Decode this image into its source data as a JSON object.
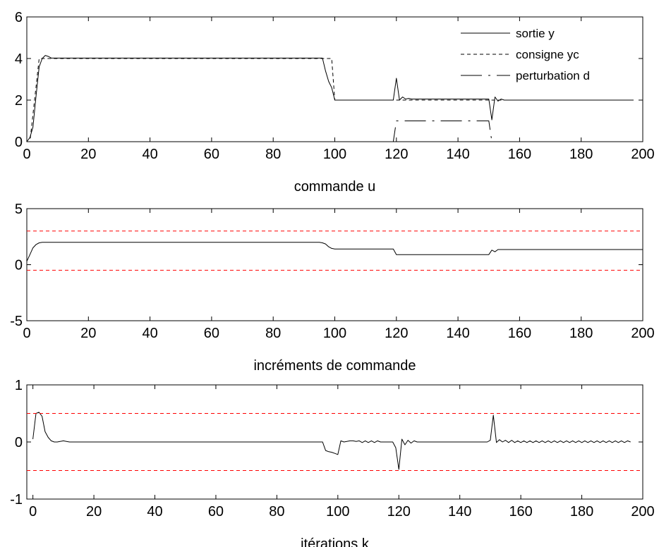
{
  "chart_data": [
    {
      "type": "line",
      "title": "",
      "xlabel": "commande u",
      "ylabel": "",
      "xlim": [
        0,
        200
      ],
      "ylim": [
        0,
        6
      ],
      "xticks": [
        0,
        20,
        40,
        60,
        80,
        100,
        120,
        140,
        160,
        180,
        200
      ],
      "yticks": [
        0,
        2,
        4,
        6
      ],
      "grid": false,
      "legend": "top-right",
      "series": [
        {
          "name": "sortie y",
          "color": "#000000",
          "dash": "solid",
          "x": [
            0,
            1,
            2,
            3,
            4,
            5,
            6,
            7,
            8,
            10,
            96,
            97,
            98,
            99,
            100,
            101,
            119,
            120,
            121,
            122,
            123,
            124,
            125,
            150,
            151,
            152,
            153,
            154,
            155,
            197
          ],
          "y": [
            0,
            0.2,
            0.7,
            2.2,
            3.6,
            4.0,
            4.15,
            4.1,
            4.02,
            4.02,
            4.02,
            3.4,
            2.9,
            2.6,
            2.0,
            2.0,
            2.0,
            3.05,
            2.0,
            2.15,
            2.05,
            2.08,
            2.05,
            2.05,
            1.05,
            2.15,
            1.95,
            2.05,
            2.0,
            2.0
          ]
        },
        {
          "name": "consigne yc",
          "color": "#000000",
          "dash": "dashed",
          "x": [
            0,
            1,
            4,
            99,
            100,
            101,
            197
          ],
          "y": [
            0,
            0,
            4.0,
            4.0,
            2.0,
            2.0,
            2.0
          ]
        },
        {
          "name": "perturbation d",
          "color": "#000000",
          "dash": "dashdot",
          "x": [
            0,
            119,
            120,
            150,
            151,
            197
          ],
          "y": [
            0,
            0,
            1.0,
            1.0,
            0,
            0
          ]
        }
      ]
    },
    {
      "type": "line",
      "title": "",
      "xlabel": "incréments de commande",
      "ylabel": "",
      "xlim": [
        0,
        200
      ],
      "ylim": [
        -5,
        5
      ],
      "xticks": [
        0,
        20,
        40,
        60,
        80,
        100,
        120,
        140,
        160,
        180,
        200
      ],
      "yticks": [
        -5,
        0,
        5
      ],
      "grid": false,
      "legend": "none",
      "series": [
        {
          "color": "#000000",
          "dash": "solid",
          "x": [
            0,
            1,
            2,
            3,
            4,
            5,
            6,
            95,
            96,
            97,
            98,
            99,
            100,
            119,
            120,
            121,
            150,
            151,
            152,
            153,
            200
          ],
          "y": [
            0.3,
            0.9,
            1.5,
            1.8,
            1.95,
            2.0,
            2.0,
            2.0,
            1.95,
            1.85,
            1.6,
            1.45,
            1.4,
            1.4,
            0.9,
            0.9,
            0.9,
            1.3,
            1.15,
            1.35,
            1.35
          ]
        },
        {
          "color": "#ff0000",
          "dash": "dashed",
          "x": [
            0,
            200
          ],
          "y": [
            3,
            3
          ]
        },
        {
          "color": "#ff0000",
          "dash": "dashed",
          "x": [
            0,
            200
          ],
          "y": [
            -0.5,
            -0.5
          ]
        }
      ]
    },
    {
      "type": "line",
      "title": "",
      "xlabel": "itérations k",
      "ylabel": "",
      "xlim": [
        -2,
        200
      ],
      "ylim": [
        -1,
        1
      ],
      "xticks": [
        0,
        20,
        40,
        60,
        80,
        100,
        120,
        140,
        160,
        180,
        200
      ],
      "yticks": [
        -1,
        0,
        1
      ],
      "grid": false,
      "legend": "none",
      "series": [
        {
          "color": "#000000",
          "dash": "solid",
          "x": [
            0,
            1,
            2,
            3,
            4,
            5,
            6,
            7,
            8,
            10,
            11,
            12,
            95,
            96,
            97,
            98,
            99,
            100,
            101,
            102,
            104,
            105,
            106,
            107,
            108,
            109,
            110,
            111,
            112,
            113,
            114,
            118,
            119,
            120,
            121,
            122,
            123,
            124,
            125,
            126,
            127,
            149,
            150,
            151,
            152,
            153,
            154,
            155,
            156,
            157,
            158,
            159,
            160,
            161,
            162,
            163,
            164,
            165,
            166,
            167,
            168,
            169,
            170,
            171,
            172,
            173,
            174,
            175,
            176,
            177,
            178,
            179,
            180,
            181,
            182,
            183,
            184,
            185,
            186,
            187,
            188,
            189,
            190,
            191,
            192,
            193,
            194,
            195,
            196
          ],
          "y": [
            0.05,
            0.5,
            0.52,
            0.45,
            0.18,
            0.08,
            0.02,
            0,
            0,
            0.02,
            0.01,
            0,
            0,
            -0.15,
            -0.17,
            -0.18,
            -0.2,
            -0.22,
            0.02,
            0,
            0.02,
            0.02,
            0.01,
            0.02,
            -0.01,
            0.02,
            -0.01,
            0.02,
            -0.01,
            0.02,
            0,
            0,
            -0.1,
            -0.48,
            0.05,
            -0.05,
            0.03,
            -0.02,
            0.02,
            0,
            0,
            0,
            0.03,
            0.47,
            -0.01,
            0.04,
            0,
            0.03,
            -0.01,
            0.03,
            -0.01,
            0.02,
            -0.01,
            0.02,
            -0.01,
            0.02,
            -0.01,
            0.02,
            -0.01,
            0.02,
            -0.01,
            0.02,
            -0.01,
            0.02,
            -0.01,
            0.02,
            -0.01,
            0.02,
            -0.01,
            0.02,
            -0.01,
            0.02,
            -0.01,
            0.02,
            -0.01,
            0.02,
            -0.01,
            0.02,
            -0.01,
            0.02,
            -0.01,
            0.02,
            -0.01,
            0.02,
            -0.01,
            0.02,
            -0.01,
            0.02,
            0
          ]
        },
        {
          "color": "#ff0000",
          "dash": "dashed",
          "x": [
            -2,
            200
          ],
          "y": [
            0.5,
            0.5
          ]
        },
        {
          "color": "#ff0000",
          "dash": "dashed",
          "x": [
            -2,
            200
          ],
          "y": [
            -0.5,
            -0.5
          ]
        }
      ]
    }
  ]
}
